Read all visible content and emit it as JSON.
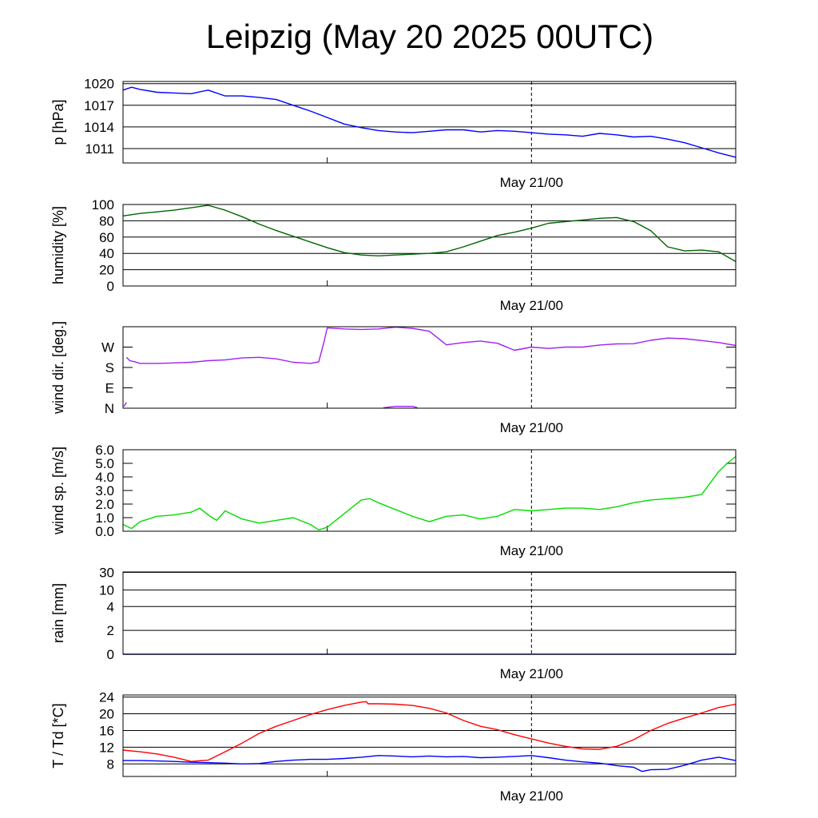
{
  "title": "Leipzig (May 20 2025 00UTC)",
  "chart_data": [
    {
      "type": "line",
      "ylabel": "p [hPa]",
      "ylim": [
        1009,
        1020.3
      ],
      "yticks": [
        "1020",
        "1017",
        "1014",
        "1011"
      ],
      "ytick_values": [
        1020,
        1017,
        1014,
        1011
      ],
      "xticks": [
        "May 21/00"
      ],
      "x_range_hours": [
        0,
        36
      ],
      "grid": true,
      "series": [
        {
          "color": "#0000ff",
          "x": [
            0,
            0.5,
            1,
            2,
            3,
            4,
            5,
            6,
            7,
            8,
            9,
            10,
            11,
            12,
            13,
            14,
            15,
            16,
            17,
            18,
            19,
            20,
            21,
            22,
            23,
            24,
            25,
            26,
            27,
            28,
            29,
            30,
            31,
            32,
            33,
            34,
            35,
            36
          ],
          "values": [
            1019.1,
            1019.5,
            1019.2,
            1018.8,
            1018.7,
            1018.6,
            1019.1,
            1018.3,
            1018.3,
            1018.1,
            1017.8,
            1017.0,
            1016.2,
            1015.3,
            1014.4,
            1013.9,
            1013.5,
            1013.3,
            1013.2,
            1013.4,
            1013.6,
            1013.6,
            1013.3,
            1013.5,
            1013.4,
            1013.2,
            1013.0,
            1012.9,
            1012.7,
            1013.1,
            1012.9,
            1012.6,
            1012.7,
            1012.3,
            1011.8,
            1011.1,
            1010.4,
            1009.8
          ]
        }
      ]
    },
    {
      "type": "line",
      "ylabel": "humidity [%]",
      "ylim": [
        0,
        100
      ],
      "yticks": [
        "100",
        "80",
        "60",
        "40",
        "20",
        "0"
      ],
      "ytick_values": [
        100,
        80,
        60,
        40,
        20,
        0
      ],
      "xticks": [
        "May 21/00"
      ],
      "x_range_hours": [
        0,
        36
      ],
      "grid": true,
      "series": [
        {
          "color": "#006400",
          "x": [
            0,
            1,
            2,
            3,
            4,
            5,
            6,
            7,
            8,
            9,
            10,
            11,
            12,
            13,
            14,
            15,
            16,
            17,
            18,
            19,
            20,
            21,
            22,
            23,
            24,
            25,
            26,
            27,
            28,
            29,
            30,
            31,
            32,
            33,
            34,
            35,
            36
          ],
          "values": [
            86,
            89,
            91,
            93,
            96,
            99,
            93,
            85,
            76,
            68,
            61,
            54,
            47,
            41,
            38,
            37,
            38,
            39,
            40,
            42,
            48,
            55,
            62,
            66,
            71,
            77,
            79,
            81,
            83,
            84,
            79,
            68,
            48,
            43,
            44,
            42,
            30
          ]
        }
      ]
    },
    {
      "type": "line",
      "ylabel": "wind dir. [deg.]",
      "ylim": [
        0,
        360
      ],
      "yticks": [
        "W",
        "S",
        "E",
        "N"
      ],
      "ytick_values": [
        270,
        180,
        90,
        0
      ],
      "xticks": [
        "May 21/00"
      ],
      "x_range_hours": [
        0,
        36
      ],
      "grid": false,
      "series": [
        {
          "color": "#a020f0",
          "x": [
            0.2,
            0.4,
            0.7,
            1,
            2,
            3,
            4,
            5,
            6,
            7,
            8,
            9,
            10,
            11,
            11.5,
            11.8,
            12,
            13,
            14,
            15,
            16,
            17,
            18,
            19,
            20,
            21,
            22,
            23,
            24,
            25,
            26,
            27,
            28,
            29,
            30,
            31,
            32,
            33,
            34,
            35,
            36
          ],
          "values": [
            225,
            210,
            205,
            198,
            198,
            200,
            203,
            210,
            213,
            222,
            225,
            218,
            203,
            198,
            205,
            290,
            355,
            350,
            348,
            350,
            358,
            353,
            340,
            280,
            290,
            297,
            287,
            256,
            270,
            264,
            270,
            270,
            279,
            284,
            285,
            300,
            310,
            307,
            299,
            290,
            277
          ]
        },
        {
          "color": "#a020f0",
          "x": [
            0.05,
            0.2
          ],
          "values": [
            8,
            25
          ]
        },
        {
          "color": "#a020f0",
          "x": [
            15.3,
            16,
            17,
            17.3
          ],
          "values": [
            2,
            8,
            8,
            2
          ]
        }
      ]
    },
    {
      "type": "line",
      "ylabel": "wind sp. [m/s]",
      "ylim": [
        0,
        6
      ],
      "yticks": [
        "6.0",
        "5.0",
        "4.0",
        "3.0",
        "2.0",
        "1.0",
        "0.0"
      ],
      "ytick_values": [
        6,
        5,
        4,
        3,
        2,
        1,
        0
      ],
      "xticks": [
        "May 21/00"
      ],
      "x_range_hours": [
        0,
        36
      ],
      "grid": false,
      "series": [
        {
          "color": "#00dd00",
          "x": [
            0,
            0.5,
            1,
            2,
            3,
            4,
            4.5,
            5,
            5.5,
            6,
            7,
            8,
            9,
            10,
            11,
            11.5,
            12,
            13,
            14,
            14.5,
            15,
            16,
            17,
            18,
            19,
            20,
            21,
            22,
            23,
            24,
            25,
            26,
            27,
            28,
            29,
            30,
            31,
            32,
            33,
            34,
            35,
            35.5,
            36
          ],
          "values": [
            0.5,
            0.2,
            0.7,
            1.1,
            1.2,
            1.4,
            1.7,
            1.2,
            0.8,
            1.5,
            0.9,
            0.6,
            0.8,
            1.0,
            0.5,
            0.1,
            0.3,
            1.3,
            2.3,
            2.4,
            2.1,
            1.6,
            1.1,
            0.7,
            1.1,
            1.2,
            0.9,
            1.1,
            1.6,
            1.5,
            1.6,
            1.7,
            1.7,
            1.6,
            1.8,
            2.1,
            2.3,
            2.4,
            2.5,
            2.7,
            4.4,
            5.0,
            5.5
          ]
        }
      ]
    },
    {
      "type": "line",
      "ylabel": "rain [mm]",
      "ylim": [
        0,
        30
      ],
      "yticks": [
        "30",
        "10",
        "4",
        "2",
        "0"
      ],
      "ytick_values": [
        30,
        10,
        4,
        2,
        0
      ],
      "xticks": [
        "May 21/00"
      ],
      "x_range_hours": [
        0,
        36
      ],
      "grid": true,
      "series": [
        {
          "color": "#00008b",
          "x": [
            0,
            36
          ],
          "values": [
            0,
            0
          ]
        }
      ]
    },
    {
      "type": "line",
      "ylabel": "T / Td [*C]",
      "ylim": [
        5,
        24.5
      ],
      "yticks": [
        "24",
        "20",
        "16",
        "12",
        "8"
      ],
      "ytick_values": [
        24,
        20,
        16,
        12,
        8
      ],
      "xticks": [
        "May 21/00"
      ],
      "x_range_hours": [
        0,
        36
      ],
      "grid": true,
      "series": [
        {
          "color": "#ff0000",
          "x": [
            0,
            1,
            2,
            3,
            4,
            5,
            6,
            7,
            8,
            9,
            10,
            11,
            12,
            13,
            14,
            14.3,
            14.4,
            15,
            16,
            17,
            18,
            19,
            20,
            21,
            22,
            23,
            24,
            25,
            26,
            27,
            28,
            29,
            30,
            31,
            32,
            33,
            34,
            35,
            36
          ],
          "values": [
            11.3,
            10.9,
            10.4,
            9.6,
            8.6,
            8.9,
            10.9,
            13.0,
            15.3,
            17.0,
            18.4,
            19.8,
            21.0,
            22.0,
            22.8,
            22.9,
            22.4,
            22.4,
            22.3,
            22.0,
            21.3,
            20.2,
            18.4,
            17.0,
            16.2,
            15.0,
            14.0,
            13.0,
            12.2,
            11.6,
            11.5,
            12.2,
            13.8,
            16.0,
            17.7,
            19.0,
            20.2,
            21.5,
            22.3
          ]
        },
        {
          "color": "#0000ff",
          "x": [
            0,
            1,
            2,
            3,
            4,
            5,
            6,
            7,
            8,
            9,
            10,
            11,
            12,
            13,
            14,
            15,
            16,
            17,
            18,
            19,
            20,
            21,
            22,
            23,
            24,
            25,
            26,
            27,
            28,
            29,
            30,
            30.5,
            31,
            32,
            33,
            34,
            35,
            36
          ],
          "values": [
            8.8,
            8.8,
            8.7,
            8.6,
            8.4,
            8.3,
            8.2,
            8.0,
            8.1,
            8.6,
            8.9,
            9.1,
            9.1,
            9.3,
            9.6,
            10.0,
            9.9,
            9.7,
            9.9,
            9.7,
            9.8,
            9.5,
            9.6,
            9.8,
            10.0,
            9.5,
            8.9,
            8.5,
            8.2,
            7.6,
            7.2,
            6.2,
            6.6,
            6.7,
            7.7,
            8.9,
            9.6,
            8.8
          ]
        }
      ]
    }
  ]
}
